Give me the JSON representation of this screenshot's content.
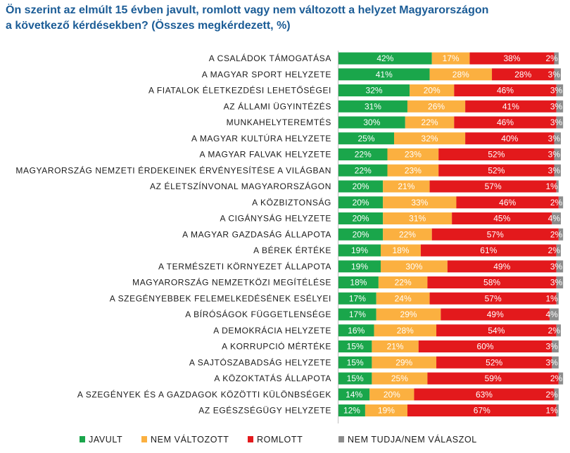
{
  "title_line1": "Ön szerint az elmúlt 15 évben javult, romlott vagy nem változott a helyzet Magyarországon",
  "title_line2": "a következő kérdésekben? (Összes megkérdezett, %)",
  "chart_data": {
    "type": "bar",
    "orientation": "horizontal",
    "stacked": true,
    "unit": "%",
    "xlim": [
      0,
      100
    ],
    "legend_position": "bottom",
    "categories": [
      "A CSALÁDOK TÁMOGATÁSA",
      "A MAGYAR SPORT HELYZETE",
      "A FIATALOK ÉLETKEZDÉSI LEHETŐSÉGEI",
      "AZ ÁLLAMI ÜGYINTÉZÉS",
      "MUNKAHELYTEREMTÉS",
      "A MAGYAR KULTÚRA HELYZETE",
      "A MAGYAR FALVAK HELYZETE",
      "MAGYARORSZÁG NEMZETI ÉRDEKEINEK ÉRVÉNYESÍTÉSE A VILÁGBAN",
      "AZ ÉLETSZÍNVONAL MAGYARORSZÁGON",
      "A KÖZBIZTONSÁG",
      "A CIGÁNYSÁG HELYZETE",
      "A MAGYAR GAZDASÁG ÁLLAPOTA",
      "A BÉREK ÉRTÉKE",
      "A TERMÉSZETI KÖRNYEZET ÁLLAPOTA",
      "MAGYARORSZÁG NEMZETKÖZI MEGÍTÉLÉSE",
      "A SZEGÉNYEBBEK FELEMELKEDÉSÉNEK ESÉLYEI",
      "A BÍRÓSÁGOK FÜGGETLENSÉGE",
      "A DEMOKRÁCIA HELYZETE",
      "A KORRUPCIÓ MÉRTÉKE",
      "A SAJTÓSZABADSÁG HELYZETE",
      "A KÖZOKTATÁS ÁLLAPOTA",
      "A SZEGÉNYEK ÉS A GAZDAGOK KÖZÖTTI KÜLÖNBSÉGEK",
      "AZ EGÉSZSÉGÜGY HELYZETE"
    ],
    "series": [
      {
        "name": "JAVULT",
        "color": "#1aa64b",
        "values": [
          42,
          41,
          32,
          31,
          30,
          25,
          22,
          22,
          20,
          20,
          20,
          20,
          19,
          19,
          18,
          17,
          17,
          16,
          15,
          15,
          15,
          14,
          12
        ]
      },
      {
        "name": "NEM VÁLTOZOTT",
        "color": "#fbb040",
        "values": [
          17,
          28,
          20,
          26,
          22,
          32,
          23,
          23,
          21,
          33,
          31,
          22,
          18,
          30,
          22,
          24,
          29,
          28,
          21,
          29,
          25,
          20,
          19
        ]
      },
      {
        "name": "ROMLOTT",
        "color": "#e3191c",
        "values": [
          38,
          28,
          46,
          41,
          46,
          40,
          52,
          52,
          57,
          46,
          45,
          57,
          61,
          49,
          58,
          57,
          49,
          54,
          60,
          52,
          59,
          63,
          67
        ]
      },
      {
        "name": "NEM TUDJA/NEM VÁLASZOL",
        "color": "#8c8c8c",
        "values": [
          2,
          3,
          3,
          3,
          3,
          3,
          3,
          3,
          1,
          2,
          4,
          2,
          2,
          3,
          3,
          1,
          4,
          2,
          3,
          3,
          2,
          2,
          1
        ]
      }
    ]
  }
}
